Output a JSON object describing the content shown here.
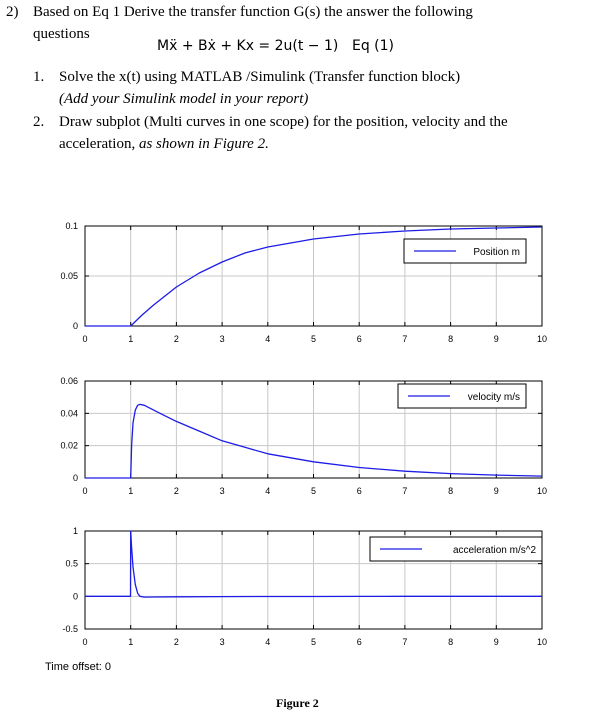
{
  "question": {
    "number": "2)",
    "line1": "Based on Eq 1 Derive the transfer function G(s) the answer the following",
    "line2": "questions",
    "equation": "Mẍ + Bẋ + Kx = 2u(t − 1)",
    "equation_label": "Eq (1)",
    "items": [
      {
        "number": "1.",
        "text": "Solve the x(t) using MATLAB /Simulink (Transfer function block)",
        "subtext": "(Add your Simulink model in your report)"
      },
      {
        "number": "2.",
        "text": "Draw subplot (Multi curves in one scope) for the position, velocity and the",
        "text2_plain": "acceleration, ",
        "text2_italic": "as shown in Figure 2."
      }
    ]
  },
  "scope": {
    "time_offset_label": "Time offset:",
    "time_offset_value": "0"
  },
  "figure_caption": "Figure 2",
  "colors": {
    "line": "#1c1ce6",
    "grid": "#c8c8c8",
    "axis": "#000000"
  },
  "chart_data": [
    {
      "type": "line",
      "x": [
        0,
        0.5,
        1,
        1.25,
        1.5,
        1.75,
        2,
        2.5,
        3,
        3.5,
        4,
        5,
        6,
        7,
        8,
        9,
        10
      ],
      "series": [
        {
          "name": "Position m",
          "values": [
            0,
            0,
            0,
            0.011,
            0.021,
            0.03,
            0.039,
            0.053,
            0.064,
            0.073,
            0.079,
            0.087,
            0.092,
            0.095,
            0.097,
            0.098,
            0.099
          ]
        }
      ],
      "xlim": [
        0,
        10
      ],
      "ylim": [
        0,
        0.1
      ],
      "xticks": [
        "0",
        "1",
        "2",
        "3",
        "4",
        "5",
        "6",
        "7",
        "8",
        "9",
        "10"
      ],
      "yticks": [
        "0",
        "0.05",
        "0.1"
      ],
      "grid": true,
      "legend": "top-right"
    },
    {
      "type": "line",
      "x": [
        0,
        0.5,
        1,
        1.02,
        1.05,
        1.1,
        1.15,
        1.2,
        1.3,
        1.5,
        1.75,
        2,
        2.5,
        3,
        3.5,
        4,
        5,
        6,
        7,
        8,
        9,
        10
      ],
      "series": [
        {
          "name": "velocity m/s",
          "values": [
            0,
            0,
            0,
            0.02,
            0.034,
            0.042,
            0.045,
            0.0455,
            0.045,
            0.042,
            0.0385,
            0.035,
            0.029,
            0.023,
            0.019,
            0.015,
            0.01,
            0.0065,
            0.0042,
            0.0027,
            0.0018,
            0.0012
          ]
        }
      ],
      "xlim": [
        0,
        10
      ],
      "ylim": [
        0,
        0.06
      ],
      "xticks": [
        "0",
        "1",
        "2",
        "3",
        "4",
        "5",
        "6",
        "7",
        "8",
        "9",
        "10"
      ],
      "yticks": [
        "0",
        "0.02",
        "0.04",
        "0.06"
      ],
      "grid": true,
      "legend": "top-right"
    },
    {
      "type": "line",
      "x": [
        0,
        0.5,
        0.995,
        1,
        1.02,
        1.05,
        1.1,
        1.15,
        1.2,
        1.3,
        1.5,
        2,
        3,
        4,
        5,
        6,
        7,
        8,
        9,
        10
      ],
      "series": [
        {
          "name": "acceleration m/s^2",
          "values": [
            0,
            0,
            0,
            1,
            0.75,
            0.45,
            0.18,
            0.05,
            0,
            -0.012,
            -0.01,
            -0.007,
            -0.004,
            -0.003,
            -0.002,
            -0.001,
            0,
            0,
            0,
            0
          ]
        }
      ],
      "xlim": [
        0,
        10
      ],
      "ylim": [
        -0.5,
        1
      ],
      "xticks": [
        "0",
        "1",
        "2",
        "3",
        "4",
        "5",
        "6",
        "7",
        "8",
        "9",
        "10"
      ],
      "yticks": [
        "-0.5",
        "0",
        "0.5",
        "1"
      ],
      "grid": true,
      "legend": "top-right"
    }
  ]
}
